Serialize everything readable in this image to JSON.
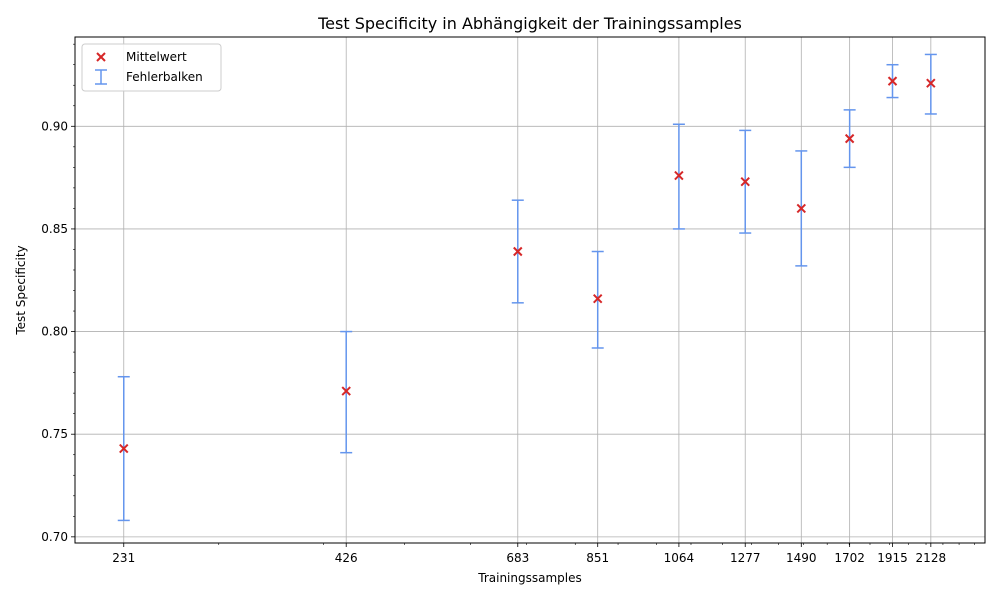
{
  "chart_data": {
    "type": "scatter",
    "title": "Test Specificity in Abhängigkeit der Trainingssamples",
    "xlabel": "Trainingssamples",
    "ylabel": "Test Specificity",
    "x_scale": "log",
    "xlim": [
      202,
      2470
    ],
    "ylim": [
      0.697,
      0.9435
    ],
    "x_ticks": [
      231,
      426,
      683,
      851,
      1064,
      1277,
      1490,
      1702,
      1915,
      2128
    ],
    "y_ticks": [
      0.7,
      0.75,
      0.8,
      0.85,
      0.9
    ],
    "y_tick_labels": [
      "0.70",
      "0.75",
      "0.80",
      "0.85",
      "0.90"
    ],
    "grid": true,
    "legend_position": "top-left",
    "legend": {
      "mean_label": "Mittelwert",
      "error_label": "Fehlerbalken"
    },
    "colors": {
      "mean_marker": "#d62728",
      "error_bar": "#6495ed",
      "grid": "#b0b0b0"
    },
    "points": [
      {
        "x": 231,
        "mean": 0.743,
        "lower": 0.708,
        "upper": 0.778
      },
      {
        "x": 426,
        "mean": 0.771,
        "lower": 0.741,
        "upper": 0.8
      },
      {
        "x": 683,
        "mean": 0.839,
        "lower": 0.814,
        "upper": 0.864
      },
      {
        "x": 851,
        "mean": 0.816,
        "lower": 0.792,
        "upper": 0.839
      },
      {
        "x": 1064,
        "mean": 0.876,
        "lower": 0.85,
        "upper": 0.901
      },
      {
        "x": 1277,
        "mean": 0.873,
        "lower": 0.848,
        "upper": 0.898
      },
      {
        "x": 1490,
        "mean": 0.86,
        "lower": 0.832,
        "upper": 0.888
      },
      {
        "x": 1702,
        "mean": 0.894,
        "lower": 0.88,
        "upper": 0.908
      },
      {
        "x": 1915,
        "mean": 0.922,
        "lower": 0.914,
        "upper": 0.93
      },
      {
        "x": 2128,
        "mean": 0.921,
        "lower": 0.906,
        "upper": 0.935
      }
    ]
  }
}
